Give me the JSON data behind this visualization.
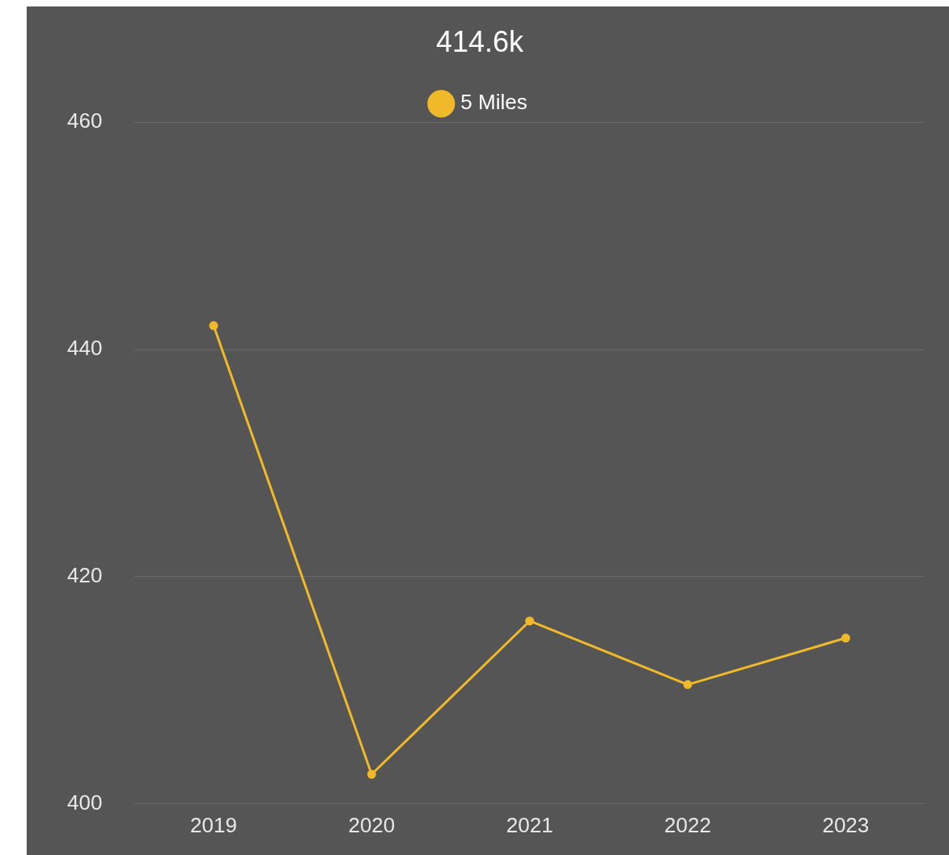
{
  "chart_data": {
    "type": "line",
    "title": "414.6k",
    "categories": [
      "2019",
      "2020",
      "2021",
      "2022",
      "2023"
    ],
    "series": [
      {
        "name": "5 Miles",
        "color": "#f0b92a",
        "values": [
          442.1,
          402.6,
          416.1,
          410.5,
          414.6
        ]
      }
    ],
    "ylim": [
      400,
      460
    ],
    "yticks": [
      400,
      420,
      440,
      460
    ],
    "grid": "y",
    "legend": "top",
    "marker": "circle"
  }
}
